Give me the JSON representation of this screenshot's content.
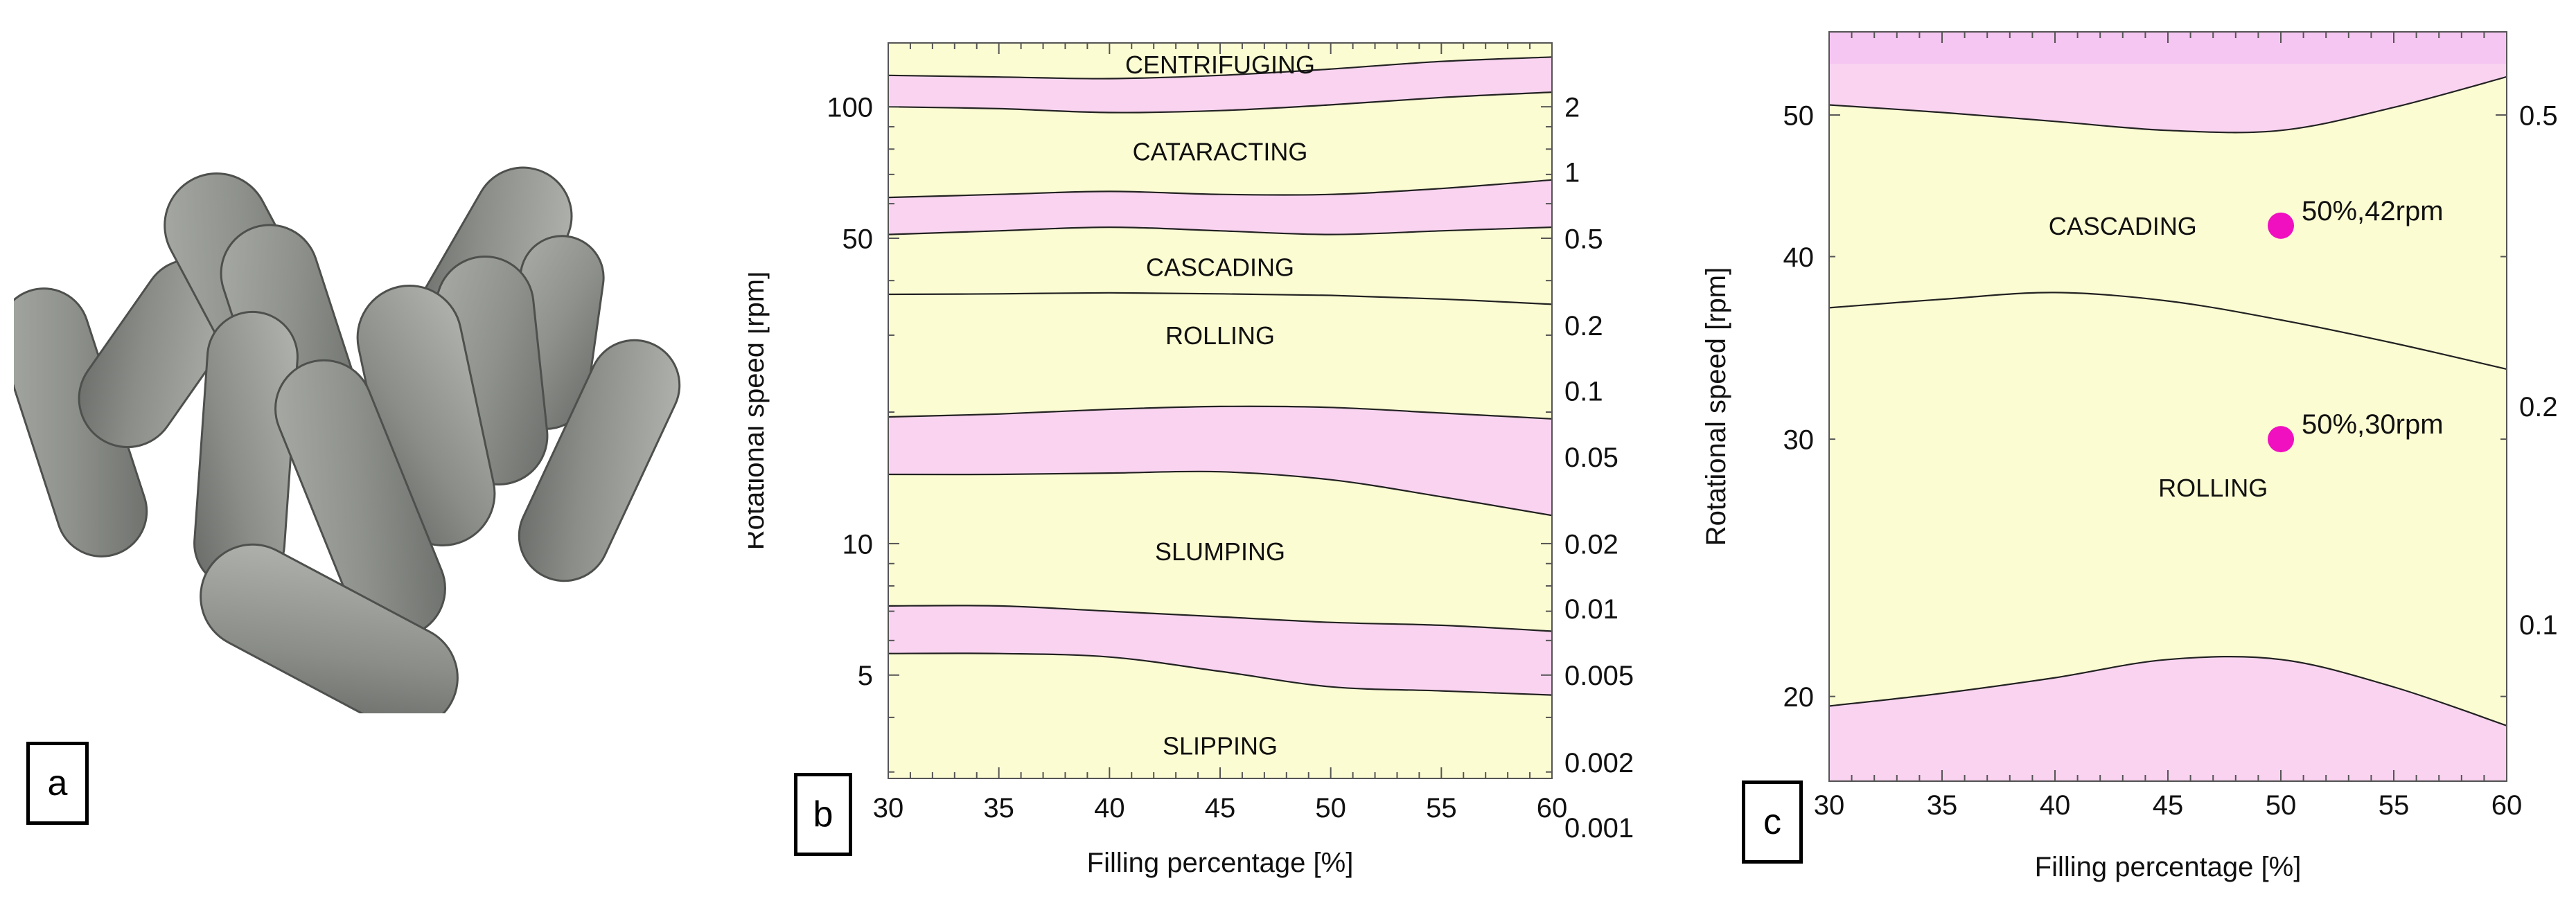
{
  "panels": {
    "a": "a",
    "b": "b",
    "c": "c"
  },
  "colors": {
    "yellow": "#fcfcd3",
    "pink": "#f9d3f0",
    "pink_top": "#f5c6f1",
    "marker": "#f010c0",
    "line": "#222222"
  },
  "photo": {
    "description_icon": "grinding-media-cylpebs-image"
  },
  "chart_data": [
    {
      "type": "area",
      "panel": "b",
      "xlabel": "Filling percentage [%]",
      "ylabel": "Rotational speed [rpm]",
      "xlim": [
        30,
        60
      ],
      "ylim": [
        2.9,
        140
      ],
      "y_scale": "log",
      "x_ticks": [
        30,
        35,
        40,
        45,
        50,
        55,
        60
      ],
      "y_ticks_left": [
        5,
        10,
        50,
        100
      ],
      "y_ticks_right": [
        {
          "label": "2",
          "rpm": 100
        },
        {
          "label": "1",
          "rpm": 71
        },
        {
          "label": "0.5",
          "rpm": 50
        },
        {
          "label": "0.2",
          "rpm": 31.6
        },
        {
          "label": "0.1",
          "rpm": 22.4
        },
        {
          "label": "0.05",
          "rpm": 15.8
        },
        {
          "label": "0.02",
          "rpm": 10
        },
        {
          "label": "0.01",
          "rpm": 7.1
        },
        {
          "label": "0.005",
          "rpm": 5
        },
        {
          "label": "0.002",
          "rpm": 3.16
        },
        {
          "label": "0.001",
          "rpm": 2.24
        }
      ],
      "x": [
        30,
        35,
        40,
        45,
        50,
        55,
        60
      ],
      "bands": [
        {
          "lower": [
            5.6,
            5.6,
            5.5,
            5.1,
            4.7,
            4.6,
            4.5
          ],
          "upper": [
            7.2,
            7.2,
            7.0,
            6.8,
            6.6,
            6.5,
            6.3
          ]
        },
        {
          "lower": [
            14.4,
            14.4,
            14.5,
            14.6,
            14.0,
            12.8,
            11.6
          ],
          "upper": [
            19.5,
            19.8,
            20.3,
            20.6,
            20.5,
            19.9,
            19.3
          ]
        },
        {
          "lower": [
            51,
            52,
            53,
            52,
            51,
            52,
            53
          ],
          "upper": [
            62,
            63,
            64,
            63,
            63,
            65,
            68
          ]
        },
        {
          "lower": [
            100,
            99,
            97,
            98,
            101,
            105,
            108
          ],
          "upper": [
            118,
            117,
            116,
            118,
            122,
            127,
            130
          ]
        }
      ],
      "boundary_lines": [
        {
          "y": [
            37.2,
            37.3,
            37.5,
            37.3,
            37.0,
            36.3,
            35.3
          ]
        }
      ],
      "regions": [
        {
          "label": "CENTRIFUGING",
          "x": 45,
          "y": 125
        },
        {
          "label": "CATARACTING",
          "x": 45,
          "y": 79
        },
        {
          "label": "CASCADING",
          "x": 45,
          "y": 43
        },
        {
          "label": "ROLLING",
          "x": 45,
          "y": 30
        },
        {
          "label": "SLUMPING",
          "x": 45,
          "y": 9.6
        },
        {
          "label": "SLIPPING",
          "x": 45,
          "y": 3.45
        }
      ]
    },
    {
      "type": "area",
      "panel": "c",
      "xlabel": "Filling percentage [%]",
      "ylabel": "Rotational speed [rpm]",
      "xlim": [
        30,
        60
      ],
      "ylim": [
        17.5,
        57
      ],
      "y_scale": "log",
      "x_ticks": [
        30,
        35,
        40,
        45,
        50,
        55,
        60
      ],
      "y_ticks_left": [
        20,
        30,
        40,
        50
      ],
      "y_ticks_right": [
        {
          "label": "0.5",
          "rpm": 50
        },
        {
          "label": "0.2",
          "rpm": 31.6
        },
        {
          "label": "0.1",
          "rpm": 22.4
        }
      ],
      "x": [
        30,
        35,
        40,
        45,
        50,
        55,
        60
      ],
      "bands": [
        {
          "lower": [
            17.5,
            17.5,
            17.5,
            17.5,
            17.5,
            17.5,
            17.5
          ],
          "upper": [
            19.7,
            20.1,
            20.6,
            21.2,
            21.2,
            20.3,
            19.1
          ]
        },
        {
          "lower": [
            50.8,
            50.2,
            49.5,
            48.8,
            48.8,
            50.6,
            53.1
          ],
          "upper": [
            57,
            57,
            57,
            57,
            57,
            57,
            57
          ]
        }
      ],
      "boundary_lines": [
        {
          "y": [
            36.9,
            37.4,
            37.8,
            37.3,
            36.2,
            34.9,
            33.5
          ]
        }
      ],
      "points": [
        {
          "x": 50,
          "y": 42,
          "label": "50%,42rpm"
        },
        {
          "x": 50,
          "y": 30,
          "label": "50%,30rpm"
        }
      ],
      "regions": [
        {
          "label": "CASCADING",
          "x": 43,
          "y": 42
        },
        {
          "label": "ROLLING",
          "x": 47,
          "y": 27.8
        }
      ]
    }
  ]
}
